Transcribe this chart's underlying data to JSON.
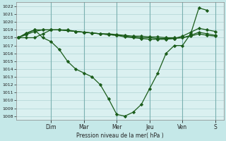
{
  "xlabel": "Pression niveau de la mer( hPa )",
  "ylim": [
    1007.5,
    1022.5
  ],
  "yticks": [
    1008,
    1009,
    1010,
    1011,
    1012,
    1013,
    1014,
    1015,
    1016,
    1017,
    1018,
    1019,
    1020,
    1021,
    1022
  ],
  "background_color": "#c5e8e8",
  "plot_bg_color": "#daf0f0",
  "grid_color": "#b0d4d4",
  "line_color": "#1a5c1a",
  "day_labels": [
    "Dim",
    "Mar",
    "Mer",
    "Jeu",
    "Ven",
    "S"
  ],
  "day_positions": [
    2.0,
    4.0,
    6.0,
    8.0,
    10.0,
    12.0
  ],
  "xlim": [
    -0.1,
    12.5
  ],
  "series": [
    {
      "x": [
        0.0,
        0.5,
        1.0,
        1.5,
        2.0,
        2.5,
        3.0,
        3.5,
        4.0,
        4.5,
        5.0,
        5.5,
        6.0,
        6.5,
        7.0,
        7.5,
        8.0,
        8.5,
        9.0,
        9.5,
        10.0,
        10.5,
        11.0,
        11.5,
        12.0
      ],
      "y": [
        1018.0,
        1018.6,
        1019.0,
        1019.0,
        1019.0,
        1019.0,
        1019.0,
        1018.8,
        1018.7,
        1018.6,
        1018.5,
        1018.5,
        1018.4,
        1018.3,
        1018.2,
        1018.2,
        1018.1,
        1018.1,
        1018.0,
        1018.0,
        1018.0,
        1018.2,
        1018.5,
        1018.3,
        1018.2
      ]
    },
    {
      "x": [
        0.0,
        0.5,
        1.0,
        1.5,
        2.0,
        2.5,
        3.0,
        3.5,
        4.0,
        4.5,
        5.0,
        5.5,
        6.0,
        6.5,
        7.0,
        7.5,
        8.0,
        8.5,
        9.0,
        9.5,
        10.0,
        10.5,
        11.0,
        11.5,
        12.0
      ],
      "y": [
        1018.0,
        1018.4,
        1018.8,
        1019.0,
        1019.0,
        1019.0,
        1018.9,
        1018.8,
        1018.7,
        1018.6,
        1018.5,
        1018.4,
        1018.3,
        1018.2,
        1018.1,
        1018.0,
        1018.0,
        1017.9,
        1017.9,
        1017.9,
        1018.0,
        1018.3,
        1018.7,
        1018.5,
        1018.3
      ]
    },
    {
      "x": [
        0.0,
        0.5,
        1.0,
        1.5,
        2.0,
        2.5,
        3.0,
        3.5,
        4.0,
        4.5,
        5.0,
        5.5,
        6.0,
        6.5,
        7.0,
        7.5,
        8.0,
        8.5,
        9.0,
        9.5,
        10.0,
        10.5,
        11.0,
        11.5,
        12.0
      ],
      "y": [
        1018.0,
        1018.0,
        1018.0,
        1018.5,
        1019.0,
        1019.0,
        1018.9,
        1018.8,
        1018.7,
        1018.6,
        1018.5,
        1018.4,
        1018.3,
        1018.1,
        1018.0,
        1017.9,
        1017.8,
        1017.8,
        1017.8,
        1017.9,
        1018.2,
        1018.7,
        1019.2,
        1019.0,
        1018.8
      ]
    },
    {
      "x": [
        0.0,
        0.5,
        1.0,
        1.5,
        2.0,
        2.5,
        3.0,
        3.5,
        4.0,
        4.5,
        5.0,
        5.5,
        6.0,
        6.5,
        7.0,
        7.5,
        8.0,
        8.5,
        9.0,
        9.5,
        10.0,
        10.5,
        11.0,
        11.5
      ],
      "y": [
        1018.0,
        1018.5,
        1019.0,
        1018.0,
        1017.5,
        1016.5,
        1015.0,
        1014.0,
        1013.5,
        1013.0,
        1012.0,
        1010.2,
        1008.2,
        1008.0,
        1008.5,
        1009.5,
        1011.5,
        1013.5,
        1016.0,
        1017.0,
        1017.0,
        1018.5,
        1021.8,
        1021.5
      ]
    }
  ]
}
